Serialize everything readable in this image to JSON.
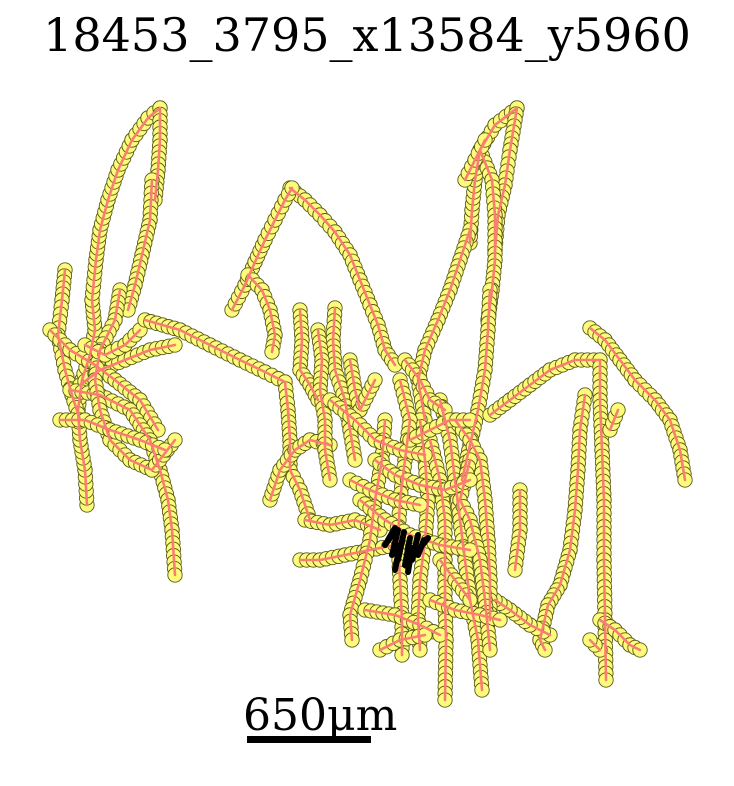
{
  "title": "18453_3795_x13584_y5960",
  "scale_bar": {
    "label": "650μm"
  },
  "colors": {
    "track_line": "#fa7d72",
    "node_fill": "#fdfb7a",
    "node_stroke": "#5a5a1a",
    "cluster": "#000000",
    "scale_bar": "#000000"
  }
}
